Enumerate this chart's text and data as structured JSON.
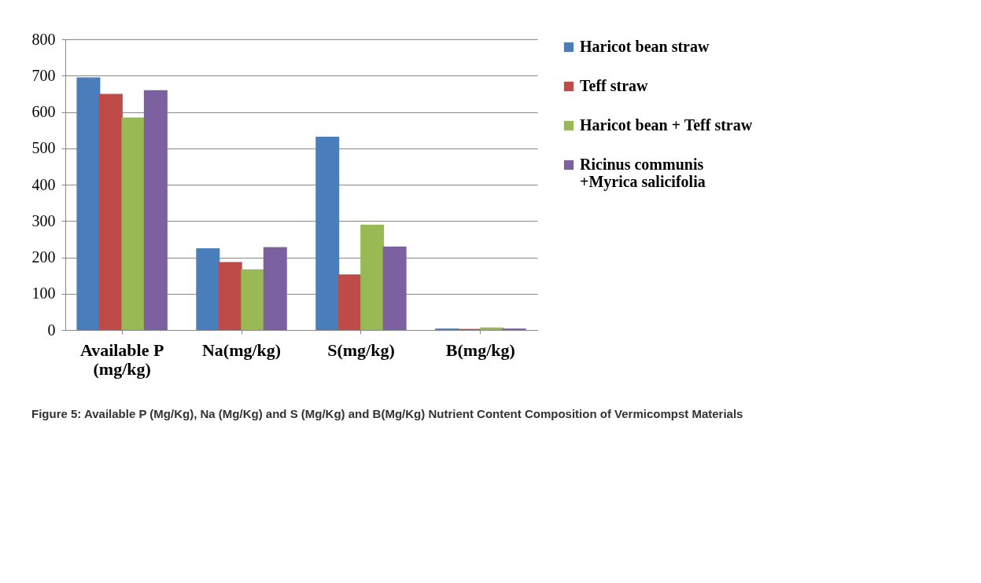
{
  "chart_data": {
    "type": "bar",
    "categories": [
      "Available P\n(mg/kg)",
      "Na(mg/kg)",
      "S(mg/kg)",
      "B(mg/kg)"
    ],
    "series": [
      {
        "name": "Haricot bean straw",
        "color": "#4a7ebb",
        "values": [
          695,
          225,
          532,
          4
        ]
      },
      {
        "name": "Teff straw",
        "color": "#be4b48",
        "values": [
          650,
          187,
          153,
          3
        ]
      },
      {
        "name": "Haricot bean + Teff straw",
        "color": "#98b954",
        "values": [
          585,
          167,
          290,
          7
        ]
      },
      {
        "name": "Ricinus communis\n+Myrica salicifolia",
        "color": "#7d60a0",
        "values": [
          660,
          228,
          230,
          4
        ]
      }
    ],
    "ylim": [
      0,
      800
    ],
    "yticks": [
      0,
      100,
      200,
      300,
      400,
      500,
      600,
      700,
      800
    ],
    "grid": "y",
    "legend": "right",
    "annotations": [
      "Figure 5: Available P (Mg/Kg), Na (Mg/Kg) and S (Mg/Kg) and B(Mg/Kg) Nutrient Content Composition of Vermicompst Materials"
    ]
  }
}
